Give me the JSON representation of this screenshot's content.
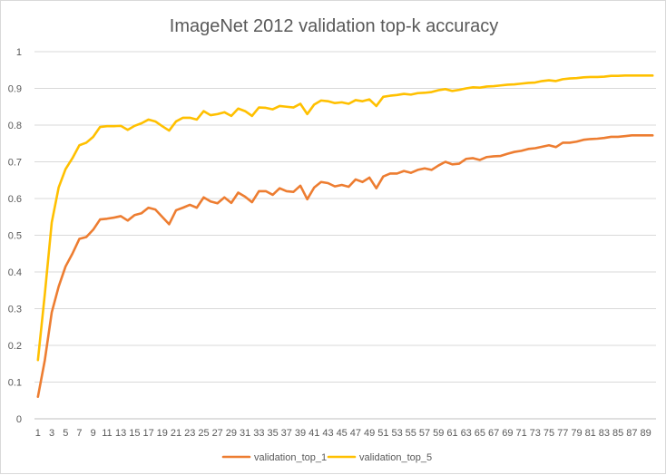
{
  "chart_data": {
    "type": "line",
    "title": "ImageNet 2012 validation top-k accuracy",
    "xlabel": "",
    "ylabel": "",
    "ylim": [
      0,
      1
    ],
    "y_ticks": [
      "0",
      "0.1",
      "0.2",
      "0.3",
      "0.4",
      "0.5",
      "0.6",
      "0.7",
      "0.8",
      "0.9",
      "1"
    ],
    "x_tick_labels": [
      "1",
      "3",
      "5",
      "7",
      "9",
      "11",
      "13",
      "15",
      "17",
      "19",
      "21",
      "23",
      "25",
      "27",
      "29",
      "31",
      "33",
      "35",
      "37",
      "39",
      "41",
      "43",
      "45",
      "47",
      "49",
      "51",
      "53",
      "55",
      "57",
      "59",
      "61",
      "63",
      "65",
      "67",
      "69",
      "71",
      "73",
      "75",
      "77",
      "79",
      "81",
      "83",
      "85",
      "87",
      "89"
    ],
    "grid": "horizontal",
    "legend_position": "bottom",
    "x": [
      1,
      2,
      3,
      4,
      5,
      6,
      7,
      8,
      9,
      10,
      11,
      12,
      13,
      14,
      15,
      16,
      17,
      18,
      19,
      20,
      21,
      22,
      23,
      24,
      25,
      26,
      27,
      28,
      29,
      30,
      31,
      32,
      33,
      34,
      35,
      36,
      37,
      38,
      39,
      40,
      41,
      42,
      43,
      44,
      45,
      46,
      47,
      48,
      49,
      50,
      51,
      52,
      53,
      54,
      55,
      56,
      57,
      58,
      59,
      60,
      61,
      62,
      63,
      64,
      65,
      66,
      67,
      68,
      69,
      70,
      71,
      72,
      73,
      74,
      75,
      76,
      77,
      78,
      79,
      80,
      81,
      82,
      83,
      84,
      85,
      86,
      87,
      88,
      89,
      90
    ],
    "series": [
      {
        "name": "validation_top_1",
        "color": "#ed7d31",
        "values": [
          0.06,
          0.16,
          0.29,
          0.36,
          0.415,
          0.45,
          0.49,
          0.495,
          0.515,
          0.543,
          0.545,
          0.548,
          0.552,
          0.54,
          0.555,
          0.56,
          0.575,
          0.57,
          0.55,
          0.53,
          0.568,
          0.575,
          0.583,
          0.575,
          0.603,
          0.592,
          0.587,
          0.603,
          0.588,
          0.616,
          0.605,
          0.59,
          0.62,
          0.62,
          0.61,
          0.628,
          0.62,
          0.618,
          0.635,
          0.598,
          0.63,
          0.645,
          0.642,
          0.633,
          0.637,
          0.632,
          0.652,
          0.645,
          0.657,
          0.628,
          0.66,
          0.668,
          0.668,
          0.675,
          0.67,
          0.678,
          0.682,
          0.678,
          0.69,
          0.7,
          0.693,
          0.695,
          0.708,
          0.71,
          0.705,
          0.713,
          0.715,
          0.716,
          0.722,
          0.727,
          0.73,
          0.735,
          0.737,
          0.741,
          0.745,
          0.74,
          0.752,
          0.752,
          0.755,
          0.76,
          0.762,
          0.763,
          0.765,
          0.768,
          0.768,
          0.77,
          0.772,
          0.772,
          0.772,
          0.772
        ]
      },
      {
        "name": "validation_top_5",
        "color": "#ffc000",
        "values": [
          0.16,
          0.34,
          0.535,
          0.63,
          0.68,
          0.71,
          0.745,
          0.752,
          0.768,
          0.795,
          0.797,
          0.797,
          0.798,
          0.787,
          0.798,
          0.805,
          0.815,
          0.81,
          0.797,
          0.785,
          0.81,
          0.82,
          0.82,
          0.815,
          0.838,
          0.827,
          0.83,
          0.835,
          0.825,
          0.845,
          0.838,
          0.825,
          0.848,
          0.847,
          0.843,
          0.852,
          0.85,
          0.848,
          0.858,
          0.83,
          0.856,
          0.867,
          0.865,
          0.86,
          0.862,
          0.858,
          0.868,
          0.865,
          0.87,
          0.852,
          0.877,
          0.88,
          0.882,
          0.885,
          0.883,
          0.887,
          0.888,
          0.89,
          0.895,
          0.898,
          0.893,
          0.896,
          0.9,
          0.903,
          0.902,
          0.905,
          0.906,
          0.908,
          0.91,
          0.911,
          0.913,
          0.915,
          0.916,
          0.92,
          0.922,
          0.92,
          0.925,
          0.927,
          0.928,
          0.93,
          0.931,
          0.931,
          0.932,
          0.934,
          0.934,
          0.935,
          0.935,
          0.935,
          0.935,
          0.935
        ]
      }
    ]
  }
}
